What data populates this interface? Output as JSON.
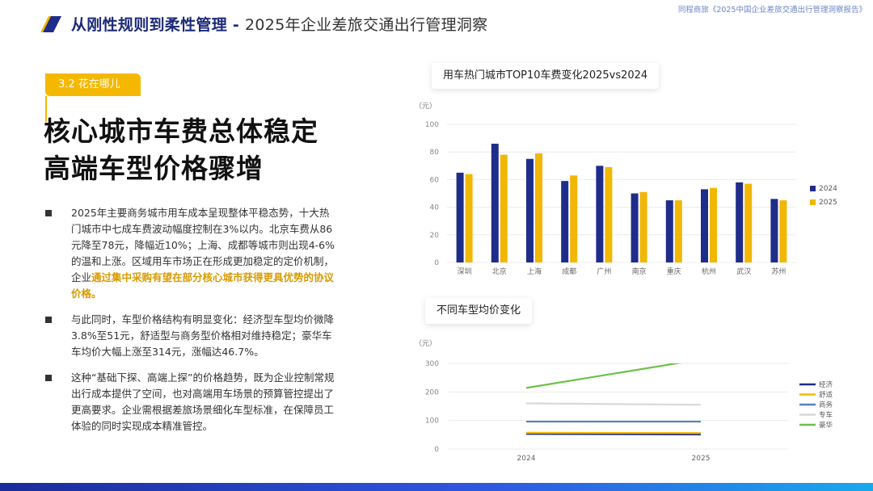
{
  "header": {
    "title_strong": "从刚性规则到柔性管理",
    "separator": " - ",
    "title_sub": "2025年企业差旅交通出行管理洞察",
    "top_right": "同程商旅《2025中国企业差旅交通出行管理洞察报告》"
  },
  "section_tag": "3.2 花在哪儿",
  "headline": [
    "核心城市车费总体稳定",
    "高端车型价格骤增"
  ],
  "bullets": [
    {
      "text": "2025年主要商务城市用车成本呈现整体平稳态势，十大热门城市中七成车费波动幅度控制在3%以内。北京车费从86元降至78元，降幅近10%；上海、成都等城市则出现4-6%的温和上涨。区域用车市场正在形成更加稳定的定价机制，企业",
      "highlight": "通过集中采购有望在部分核心城市获得更具优势的协议价格。"
    },
    {
      "text": "与此同时，车型价格结构有明显变化：经济型车型均价微降3.8%至51元，舒适型与商务型价格相对维持稳定；豪华车车均价大幅上涨至314元，涨幅达46.7%。",
      "highlight": ""
    },
    {
      "text": "这种“基础下探、高端上探”的价格趋势，既为企业控制常规出行成本提供了空间，也对高端用车场景的预算管控提出了更高要求。企业需根据差旅场景细化车型标准，在保障员工体验的同时实现成本精准管控。",
      "highlight": ""
    }
  ],
  "chart_data": [
    {
      "type": "bar",
      "title": "用车热门城市TOP10车费变化2025vs2024",
      "ylabel": "（元）",
      "ylim": [
        0,
        100
      ],
      "yticks": [
        0,
        20,
        40,
        60,
        80,
        100
      ],
      "categories": [
        "深圳",
        "北京",
        "上海",
        "成都",
        "广州",
        "南京",
        "重庆",
        "杭州",
        "武汉",
        "苏州"
      ],
      "series": [
        {
          "name": "2024",
          "color": "#1f2d8a",
          "values": [
            65,
            86,
            75,
            59,
            70,
            50,
            45,
            53,
            58,
            46
          ]
        },
        {
          "name": "2025",
          "color": "#f2b705",
          "values": [
            64,
            78,
            79,
            63,
            69,
            51,
            45,
            54,
            57,
            45
          ]
        }
      ],
      "legend": "right"
    },
    {
      "type": "line",
      "title": "不同车型均价变化",
      "ylabel": "（元）",
      "ylim": [
        0,
        300
      ],
      "yticks": [
        0,
        100,
        200,
        300
      ],
      "categories": [
        "2024",
        "2025"
      ],
      "series": [
        {
          "name": "经济",
          "color": "#1f2d8a",
          "values": [
            53,
            51
          ]
        },
        {
          "name": "舒适",
          "color": "#f2b705",
          "values": [
            57,
            56
          ]
        },
        {
          "name": "商务",
          "color": "#5b7fbf",
          "values": [
            96,
            96
          ]
        },
        {
          "name": "专车",
          "color": "#d9d9d9",
          "values": [
            160,
            155
          ]
        },
        {
          "name": "豪华",
          "color": "#6cc04a",
          "values": [
            214,
            314
          ]
        }
      ],
      "legend": "right"
    }
  ]
}
